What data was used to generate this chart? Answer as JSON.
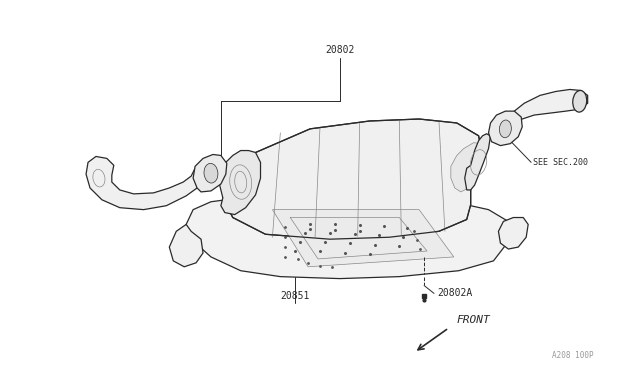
{
  "background_color": "#ffffff",
  "fig_width": 6.4,
  "fig_height": 3.72,
  "dpi": 100,
  "line_color": "#2a2a2a",
  "line_color_gray": "#888888",
  "line_color_light": "#bbbbbb",
  "label_20802": "20802",
  "label_sec200": "SEE SEC.200",
  "label_20802A": "20802A",
  "label_20851": "20851",
  "label_front": "FRONT",
  "label_code": "A208 100P",
  "lw_main": 0.9,
  "lw_detail": 0.5,
  "lw_leader": 0.7
}
